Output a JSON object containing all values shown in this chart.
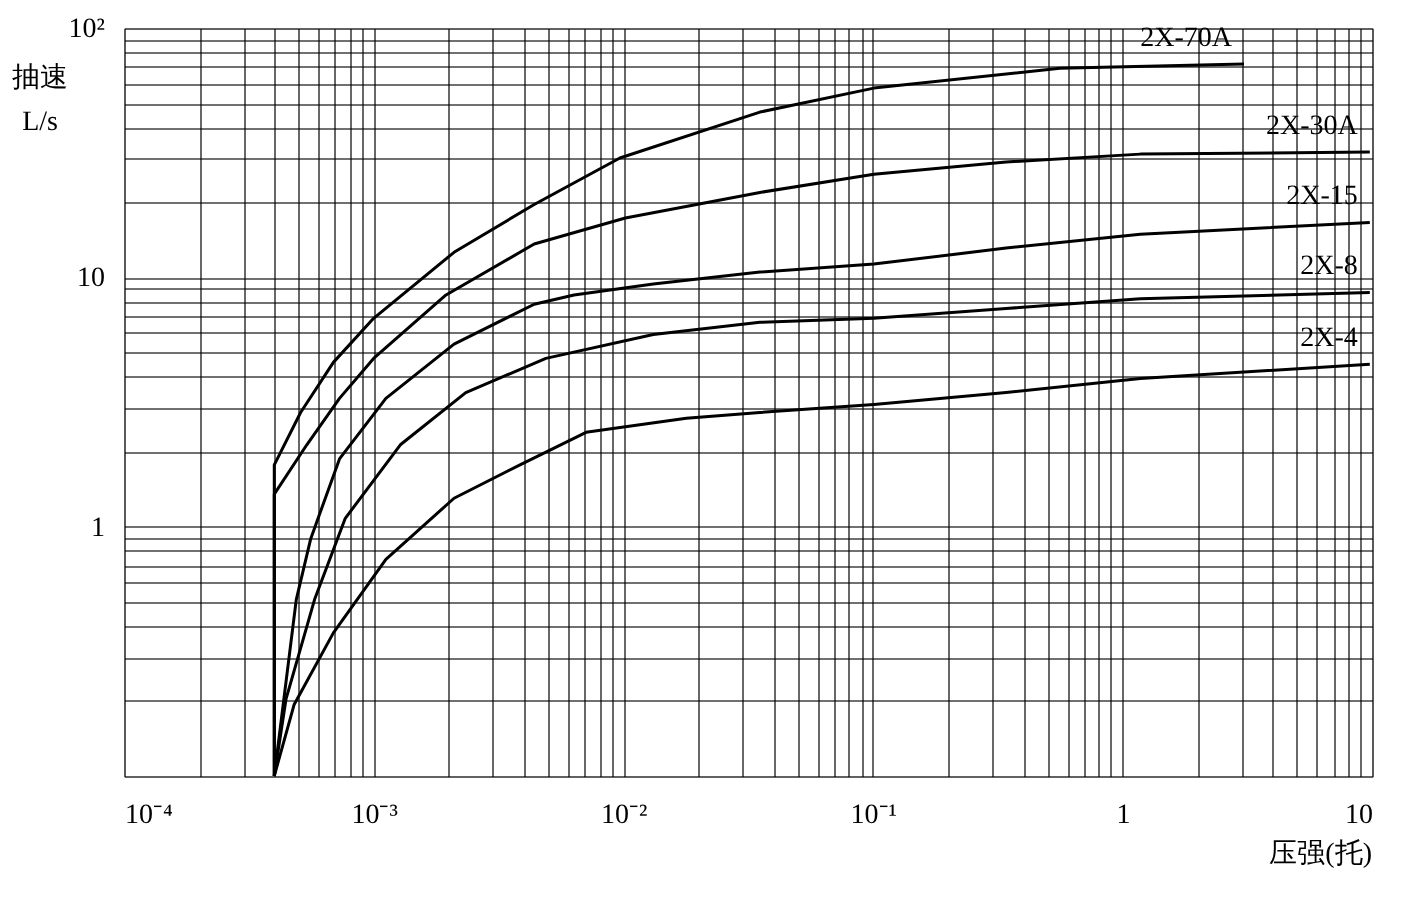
{
  "chart_data": {
    "type": "line",
    "xlabel": "压强(托)",
    "ylabel": "抽速\nL/s",
    "log": "xy",
    "grid": true,
    "marker": "none",
    "line_style": "solid",
    "xlim": [
      0.0001,
      10
    ],
    "ylim": [
      0.1,
      100
    ],
    "xticks": [
      {
        "value": 0.0001,
        "label": "10⁻⁴"
      },
      {
        "value": 0.0002,
        "label": null
      },
      {
        "value": 0.0003,
        "label": null
      },
      {
        "value": 0.0004,
        "label": null
      },
      {
        "value": 0.0005,
        "label": null
      },
      {
        "value": 0.0006,
        "label": null
      },
      {
        "value": 0.0007,
        "label": null
      },
      {
        "value": 0.0008,
        "label": null
      },
      {
        "value": 0.0009,
        "label": null
      },
      {
        "value": 0.001,
        "label": "10⁻³"
      },
      {
        "value": 0.002,
        "label": null
      },
      {
        "value": 0.003,
        "label": null
      },
      {
        "value": 0.004,
        "label": null
      },
      {
        "value": 0.005,
        "label": null
      },
      {
        "value": 0.006,
        "label": null
      },
      {
        "value": 0.007,
        "label": null
      },
      {
        "value": 0.008,
        "label": null
      },
      {
        "value": 0.009,
        "label": null
      },
      {
        "value": 0.01,
        "label": "10⁻²"
      },
      {
        "value": 0.02,
        "label": null
      },
      {
        "value": 0.03,
        "label": null
      },
      {
        "value": 0.04,
        "label": null
      },
      {
        "value": 0.05,
        "label": null
      },
      {
        "value": 0.06,
        "label": null
      },
      {
        "value": 0.07,
        "label": null
      },
      {
        "value": 0.08,
        "label": null
      },
      {
        "value": 0.09,
        "label": null
      },
      {
        "value": 0.1,
        "label": "10⁻¹"
      },
      {
        "value": 0.2,
        "label": null
      },
      {
        "value": 0.3,
        "label": null
      },
      {
        "value": 0.4,
        "label": null
      },
      {
        "value": 0.5,
        "label": null
      },
      {
        "value": 0.6,
        "label": null
      },
      {
        "value": 0.7,
        "label": null
      },
      {
        "value": 0.8,
        "label": null
      },
      {
        "value": 0.9,
        "label": null
      },
      1,
      {
        "value": 2,
        "label": null
      },
      {
        "value": 3,
        "label": null
      },
      {
        "value": 4,
        "label": null
      },
      {
        "value": 5,
        "label": null
      },
      {
        "value": 6,
        "label": null
      },
      {
        "value": 7,
        "label": null
      },
      {
        "value": 8,
        "label": null
      },
      {
        "value": 9,
        "label": null
      },
      10
    ],
    "yticks": [
      {
        "value": 0.1,
        "label": null
      },
      {
        "value": 0.2,
        "label": null
      },
      {
        "value": 0.3,
        "label": null
      },
      {
        "value": 0.4,
        "label": null
      },
      {
        "value": 0.5,
        "label": null
      },
      {
        "value": 0.6,
        "label": null
      },
      {
        "value": 0.7,
        "label": null
      },
      {
        "value": 0.8,
        "label": null
      },
      {
        "value": 0.9,
        "label": null
      },
      1,
      {
        "value": 2,
        "label": null
      },
      {
        "value": 3,
        "label": null
      },
      {
        "value": 4,
        "label": null
      },
      {
        "value": 5,
        "label": null
      },
      {
        "value": 6,
        "label": null
      },
      {
        "value": 7,
        "label": null
      },
      {
        "value": 8,
        "label": null
      },
      {
        "value": 9,
        "label": null
      },
      10,
      {
        "value": 20,
        "label": null
      },
      {
        "value": 30,
        "label": null
      },
      {
        "value": 40,
        "label": null
      },
      {
        "value": 50,
        "label": null
      },
      {
        "value": 60,
        "label": null
      },
      {
        "value": 70,
        "label": null
      },
      {
        "value": 80,
        "label": null
      },
      {
        "value": 90,
        "label": null
      },
      {
        "value": 100,
        "label": "10²"
      }
    ],
    "series": [
      {
        "name": "2X-70A",
        "color": "#000000",
        "x": [
          0.0004,
          0.0004,
          0.00051,
          0.00069,
          0.001,
          0.0021,
          0.0044,
          0.0097,
          0.0353,
          0.101,
          0.562,
          3.07
        ],
        "values": [
          0.1,
          1.77,
          2.87,
          4.56,
          6.85,
          12.6,
          19.6,
          30.1,
          46,
          57.4,
          69,
          71.7
        ]
      },
      {
        "name": "2X-30A",
        "color": "#000000",
        "x": [
          0.0004,
          0.0004,
          0.00054,
          0.00073,
          0.001,
          0.00195,
          0.0044,
          0.0102,
          0.0353,
          0.101,
          0.342,
          1.18,
          9.8
        ],
        "values": [
          0.1,
          1.35,
          2.13,
          3.27,
          4.73,
          8.5,
          13.6,
          17.3,
          21.9,
          25.9,
          29,
          31.2,
          31.8
        ]
      },
      {
        "name": "2X-15",
        "color": "#000000",
        "x": [
          0.0004,
          0.00049,
          0.00056,
          0.00073,
          0.00112,
          0.0021,
          0.0044,
          0.00635,
          0.0132,
          0.0353,
          0.101,
          0.342,
          1.18,
          9.8
        ],
        "values": [
          0.1,
          0.51,
          0.895,
          1.87,
          3.27,
          5.4,
          7.8,
          8.5,
          9.4,
          10.5,
          11.3,
          13.1,
          14.9,
          16.6
        ]
      },
      {
        "name": "2X-8",
        "color": "#000000",
        "x": [
          0.0004,
          0.000446,
          0.00058,
          0.00077,
          0.00128,
          0.00234,
          0.0049,
          0.0132,
          0.0353,
          0.101,
          0.342,
          1.18,
          9.8
        ],
        "values": [
          0.1,
          0.204,
          0.51,
          1.08,
          2.13,
          3.45,
          4.73,
          5.9,
          6.6,
          6.85,
          7.5,
          8.2,
          8.7
        ]
      },
      {
        "name": "2X-4",
        "color": "#000000",
        "x": [
          0.0004,
          0.00048,
          0.00069,
          0.00112,
          0.0021,
          0.00386,
          0.0071,
          0.0179,
          0.0353,
          0.101,
          0.342,
          1.18,
          9.8
        ],
        "values": [
          0.1,
          0.193,
          0.375,
          0.74,
          1.3,
          1.77,
          2.39,
          2.72,
          2.87,
          3.09,
          3.45,
          3.93,
          4.48
        ]
      }
    ]
  }
}
